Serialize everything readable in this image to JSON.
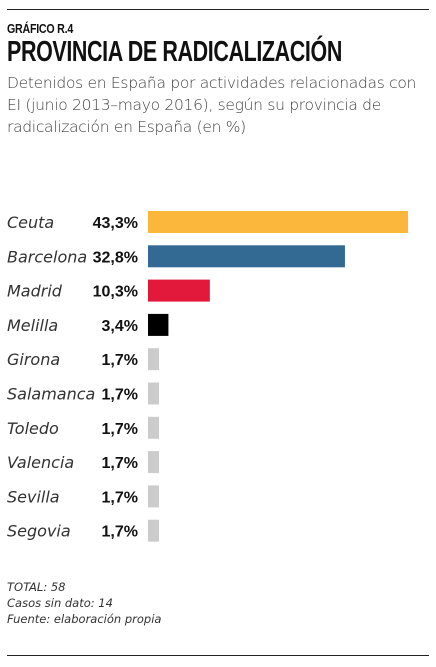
{
  "header": {
    "kicker": "GRÁFICO R.4",
    "title": "PROVINCIA DE RADICALIZACIÓN",
    "subtitle_lines": [
      "Detenidos en España por actividades relacionadas con",
      "EI (junio 2013–mayo 2016), según su provincia de",
      "radicalización en España (en %)"
    ]
  },
  "chart_data": {
    "type": "bar",
    "orientation": "horizontal",
    "title": "PROVINCIA DE RADICALIZACIÓN",
    "unit": "%",
    "categories": [
      "Ceuta",
      "Barcelona",
      "Madrid",
      "Melilla",
      "Girona",
      "Salamanca",
      "Toledo",
      "Valencia",
      "Sevilla",
      "Segovia"
    ],
    "values": [
      43.3,
      32.8,
      10.3,
      3.4,
      1.7,
      1.7,
      1.7,
      1.7,
      1.7,
      1.7
    ],
    "value_labels": [
      "43,3%",
      "32,8%",
      "10,3%",
      "3,4%",
      "1,7%",
      "1,7%",
      "1,7%",
      "1,7%",
      "1,7%",
      "1,7%"
    ],
    "colors": [
      "#fbb73c",
      "#336a94",
      "#e2193b",
      "#000000",
      "#cccccc",
      "#cccccc",
      "#cccccc",
      "#cccccc",
      "#cccccc",
      "#cccccc"
    ],
    "xlim": [
      0,
      43.3
    ],
    "grid": false,
    "legend": "none"
  },
  "notes": {
    "total": "TOTAL: 58",
    "missing": "Casos sin dato: 14",
    "source": "Fuente: elaboración propia"
  }
}
